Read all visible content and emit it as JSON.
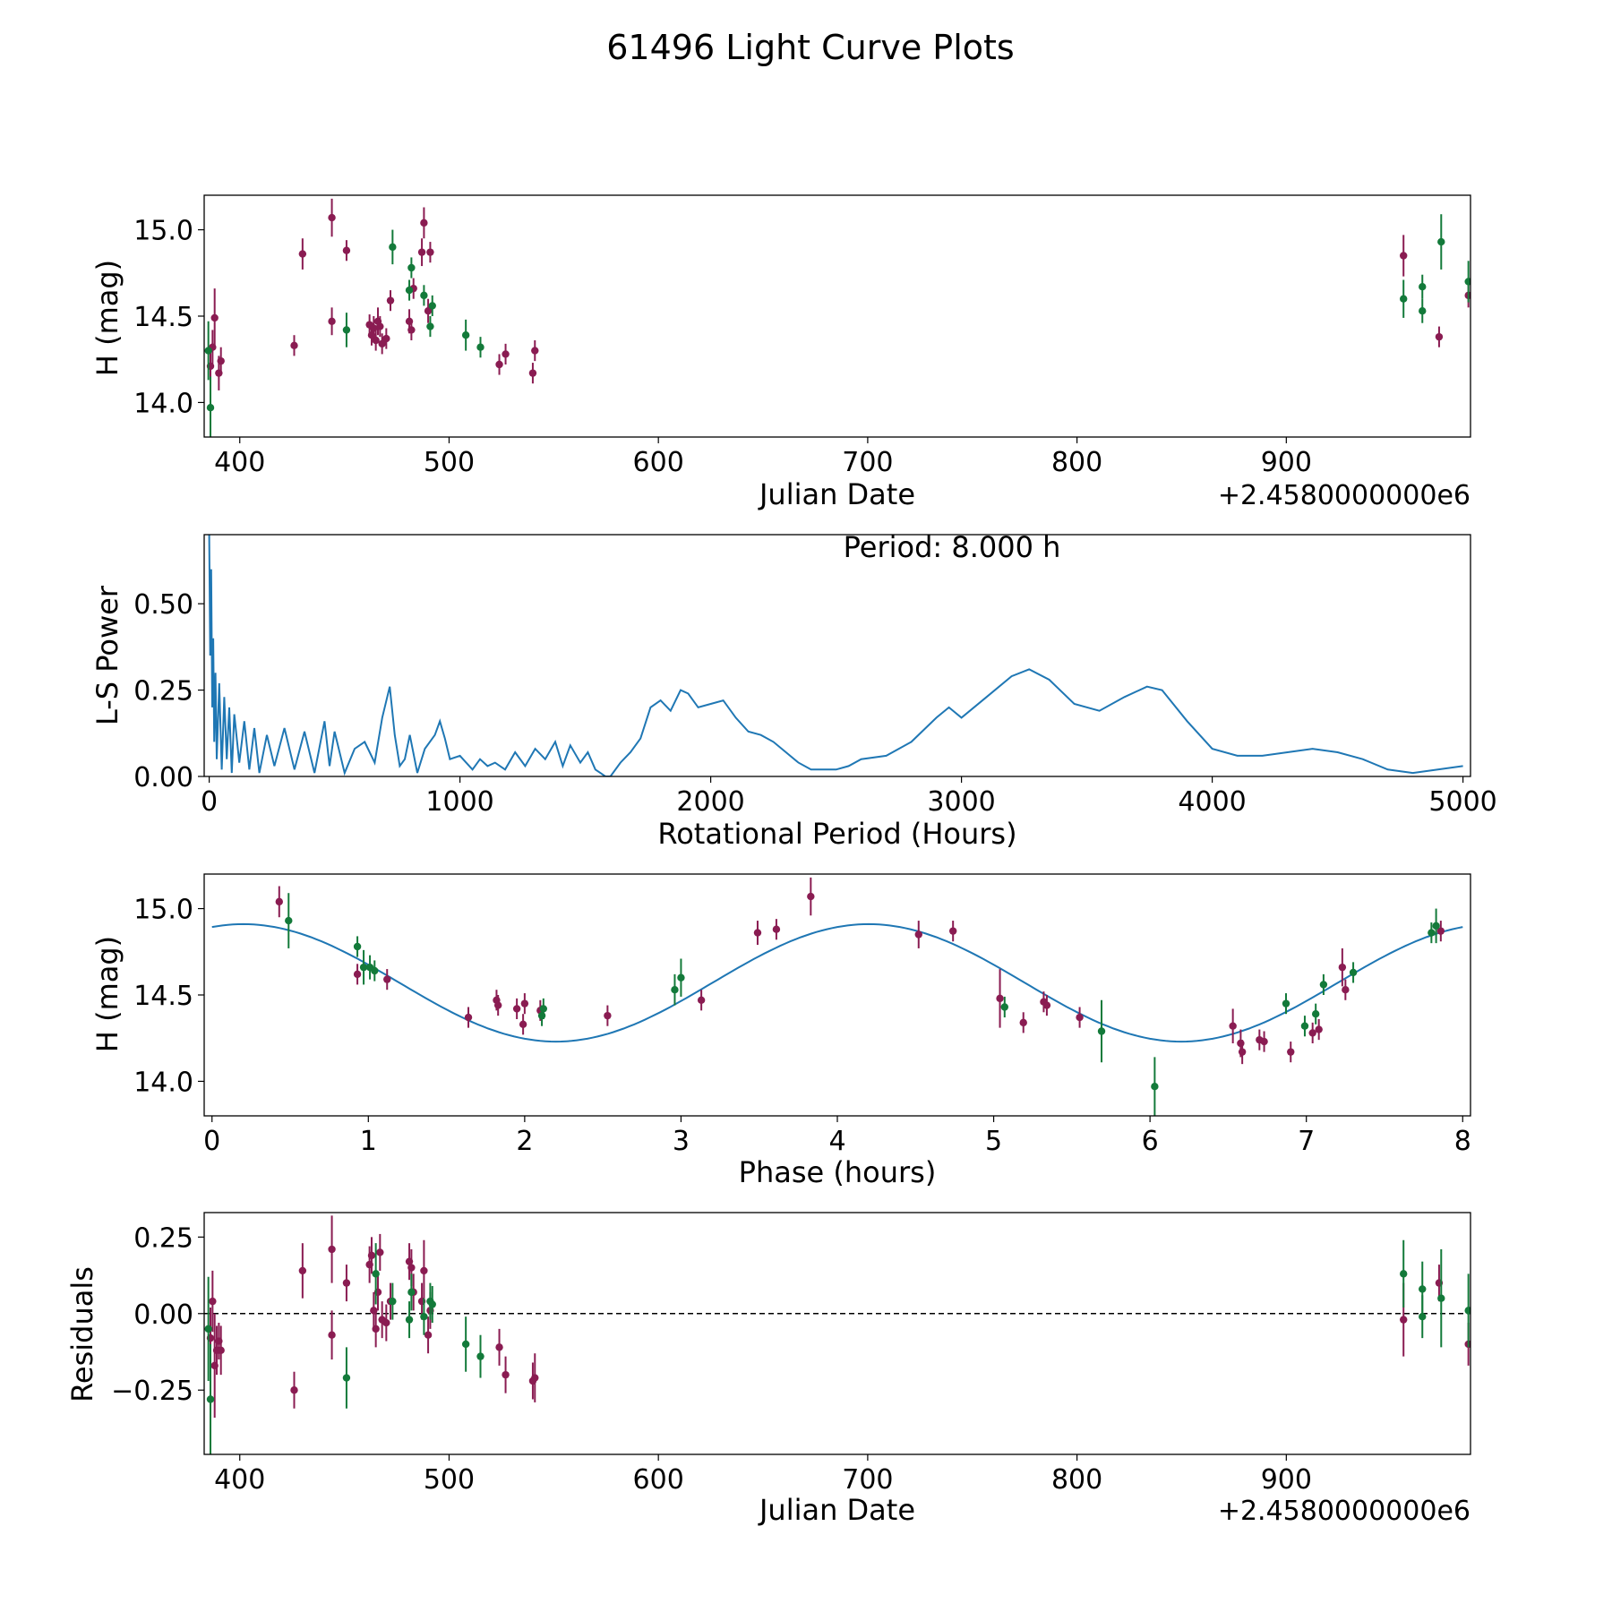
{
  "figure": {
    "title": "61496 Light Curve Plots",
    "colors": {
      "maroon": "#8a1c52",
      "green": "#137a3a",
      "line": "#1f77b4",
      "axis": "#000000"
    }
  },
  "chart_data": [
    {
      "id": "lightcurve",
      "type": "scatter",
      "title": "",
      "xlabel": "Julian Date",
      "ylabel": "H (mag)",
      "offset_text": "+2.4580000000e6",
      "xlim": [
        383,
        988
      ],
      "ylim": [
        13.8,
        15.2
      ],
      "xticks": [
        400,
        500,
        600,
        700,
        800,
        900
      ],
      "xtick_labels": [
        "400",
        "500",
        "600",
        "700",
        "800",
        "900"
      ],
      "yticks": [
        14.0,
        14.5,
        15.0
      ],
      "ytick_labels": [
        "14.0",
        "14.5",
        "15.0"
      ],
      "series": [
        {
          "name": "maroon",
          "color": "#8a1c52",
          "x": [
            386,
            387,
            388,
            390,
            391,
            426,
            430,
            444,
            444,
            451,
            462,
            463,
            464,
            465,
            466,
            467,
            468,
            470,
            472,
            481,
            482,
            483,
            487,
            488,
            490,
            491,
            524,
            527,
            540,
            541,
            956,
            973,
            987
          ],
          "y": [
            14.21,
            14.32,
            14.49,
            14.17,
            14.24,
            14.33,
            14.86,
            14.47,
            15.07,
            14.88,
            14.45,
            14.39,
            14.43,
            14.36,
            14.47,
            14.44,
            14.34,
            14.37,
            14.59,
            14.47,
            14.42,
            14.66,
            14.87,
            15.04,
            14.53,
            14.87,
            14.22,
            14.28,
            14.17,
            14.3,
            14.85,
            14.38,
            14.62
          ],
          "err": [
            0.1,
            0.1,
            0.17,
            0.1,
            0.08,
            0.06,
            0.09,
            0.08,
            0.11,
            0.06,
            0.06,
            0.06,
            0.07,
            0.06,
            0.08,
            0.06,
            0.06,
            0.06,
            0.06,
            0.07,
            0.06,
            0.06,
            0.08,
            0.09,
            0.07,
            0.06,
            0.06,
            0.06,
            0.06,
            0.06,
            0.12,
            0.06,
            0.07
          ]
        },
        {
          "name": "green",
          "color": "#137a3a",
          "x": [
            385,
            386,
            451,
            473,
            481,
            482,
            488,
            491,
            492,
            508,
            515,
            956,
            965,
            965,
            974,
            987
          ],
          "y": [
            14.3,
            13.97,
            14.42,
            14.9,
            14.65,
            14.78,
            14.62,
            14.44,
            14.56,
            14.39,
            14.32,
            14.6,
            14.67,
            14.53,
            14.93,
            14.7
          ],
          "err": [
            0.17,
            0.18,
            0.1,
            0.1,
            0.06,
            0.06,
            0.06,
            0.06,
            0.06,
            0.09,
            0.06,
            0.11,
            0.07,
            0.07,
            0.16,
            0.12
          ]
        }
      ]
    },
    {
      "id": "periodogram",
      "type": "line",
      "title": "",
      "annotation": "Period: 8.000 h",
      "xlabel": "Rotational Period (Hours)",
      "ylabel": "L-S Power",
      "xlim": [
        -20,
        5030
      ],
      "ylim": [
        0,
        0.7
      ],
      "xticks": [
        0,
        1000,
        2000,
        3000,
        4000,
        5000
      ],
      "xtick_labels": [
        "0",
        "1000",
        "2000",
        "3000",
        "4000",
        "5000"
      ],
      "yticks": [
        0.0,
        0.25,
        0.5
      ],
      "ytick_labels": [
        "0.00",
        "0.25",
        "0.50"
      ],
      "series": [
        {
          "name": "power",
          "color": "#1f77b4",
          "x": [
            0,
            4,
            8,
            12,
            16,
            20,
            25,
            30,
            40,
            50,
            60,
            70,
            80,
            90,
            100,
            120,
            140,
            160,
            180,
            200,
            230,
            260,
            300,
            340,
            380,
            420,
            460,
            480,
            500,
            540,
            580,
            620,
            660,
            690,
            720,
            740,
            760,
            780,
            800,
            830,
            860,
            900,
            920,
            940,
            960,
            1000,
            1050,
            1080,
            1110,
            1140,
            1180,
            1220,
            1260,
            1300,
            1340,
            1380,
            1410,
            1440,
            1480,
            1510,
            1540,
            1560,
            1580,
            1600,
            1640,
            1680,
            1720,
            1760,
            1800,
            1840,
            1880,
            1910,
            1950,
            2000,
            2050,
            2100,
            2150,
            2200,
            2250,
            2300,
            2350,
            2400,
            2500,
            2550,
            2600,
            2700,
            2800,
            2900,
            2950,
            3000,
            3100,
            3200,
            3270,
            3350,
            3450,
            3550,
            3650,
            3740,
            3800,
            3900,
            4000,
            4100,
            4200,
            4300,
            4400,
            4500,
            4600,
            4700,
            4800,
            4900,
            5000
          ],
          "y": [
            0.7,
            0.35,
            0.6,
            0.2,
            0.4,
            0.1,
            0.3,
            0.05,
            0.27,
            0.02,
            0.23,
            0.05,
            0.2,
            0.01,
            0.18,
            0.04,
            0.16,
            0.02,
            0.14,
            0.01,
            0.12,
            0.03,
            0.14,
            0.02,
            0.13,
            0.01,
            0.16,
            0.03,
            0.13,
            0.01,
            0.08,
            0.1,
            0.04,
            0.17,
            0.26,
            0.12,
            0.03,
            0.05,
            0.12,
            0.01,
            0.08,
            0.12,
            0.16,
            0.11,
            0.05,
            0.06,
            0.02,
            0.05,
            0.03,
            0.04,
            0.02,
            0.07,
            0.03,
            0.08,
            0.05,
            0.1,
            0.03,
            0.09,
            0.04,
            0.07,
            0.02,
            0.01,
            0.0,
            0.0,
            0.04,
            0.07,
            0.11,
            0.2,
            0.22,
            0.19,
            0.25,
            0.24,
            0.2,
            0.21,
            0.22,
            0.17,
            0.13,
            0.12,
            0.1,
            0.07,
            0.04,
            0.02,
            0.02,
            0.03,
            0.05,
            0.06,
            0.1,
            0.17,
            0.2,
            0.17,
            0.23,
            0.29,
            0.31,
            0.28,
            0.21,
            0.19,
            0.23,
            0.26,
            0.25,
            0.16,
            0.08,
            0.06,
            0.06,
            0.07,
            0.08,
            0.07,
            0.05,
            0.02,
            0.01,
            0.02,
            0.03
          ],
          "err": []
        }
      ]
    },
    {
      "id": "phased",
      "type": "scatter",
      "title": "",
      "xlabel": "Phase (hours)",
      "ylabel": "H (mag)",
      "xlim": [
        -0.05,
        8.05
      ],
      "ylim": [
        13.8,
        15.2
      ],
      "xticks": [
        0,
        1,
        2,
        3,
        4,
        5,
        6,
        7,
        8
      ],
      "xtick_labels": [
        "0",
        "1",
        "2",
        "3",
        "4",
        "5",
        "6",
        "7",
        "8"
      ],
      "yticks": [
        14.0,
        14.5,
        15.0
      ],
      "ytick_labels": [
        "14.0",
        "14.5",
        "15.0"
      ],
      "fit": {
        "color": "#1f77b4",
        "mean": 14.57,
        "amp": 0.34,
        "period": 4.0,
        "peak_phase": 0.2
      },
      "series": [
        {
          "name": "maroon",
          "color": "#8a1c52",
          "x": [
            0.43,
            0.93,
            1.12,
            1.64,
            1.82,
            1.83,
            1.95,
            1.99,
            2.0,
            2.1,
            2.53,
            3.13,
            3.49,
            3.61,
            3.83,
            4.52,
            4.74,
            5.04,
            5.19,
            5.32,
            5.34,
            5.55,
            6.53,
            6.58,
            6.59,
            6.7,
            6.73,
            6.9,
            7.04,
            7.08,
            7.23,
            7.25,
            7.86
          ],
          "y": [
            15.04,
            14.62,
            14.59,
            14.37,
            14.47,
            14.44,
            14.42,
            14.33,
            14.45,
            14.41,
            14.38,
            14.47,
            14.86,
            14.88,
            15.07,
            14.85,
            14.87,
            14.48,
            14.34,
            14.46,
            14.44,
            14.37,
            14.32,
            14.22,
            14.17,
            14.24,
            14.23,
            14.17,
            14.28,
            14.3,
            14.66,
            14.53,
            14.87
          ],
          "err": [
            0.09,
            0.06,
            0.06,
            0.06,
            0.06,
            0.06,
            0.06,
            0.06,
            0.06,
            0.06,
            0.06,
            0.06,
            0.07,
            0.06,
            0.11,
            0.08,
            0.06,
            0.17,
            0.06,
            0.06,
            0.06,
            0.06,
            0.1,
            0.08,
            0.07,
            0.06,
            0.06,
            0.06,
            0.06,
            0.06,
            0.11,
            0.06,
            0.06
          ]
        },
        {
          "name": "green",
          "color": "#137a3a",
          "x": [
            0.49,
            0.93,
            0.97,
            1.01,
            1.04,
            2.11,
            2.12,
            2.96,
            3.0,
            5.07,
            5.69,
            6.03,
            6.87,
            6.99,
            7.06,
            7.11,
            7.3,
            7.8,
            7.83
          ],
          "y": [
            14.93,
            14.78,
            14.66,
            14.66,
            14.64,
            14.38,
            14.42,
            14.53,
            14.6,
            14.43,
            14.29,
            13.97,
            14.45,
            14.32,
            14.39,
            14.56,
            14.63,
            14.86,
            14.9
          ],
          "err": [
            0.16,
            0.06,
            0.1,
            0.07,
            0.06,
            0.06,
            0.06,
            0.09,
            0.11,
            0.06,
            0.18,
            0.17,
            0.06,
            0.06,
            0.06,
            0.06,
            0.06,
            0.06,
            0.1
          ]
        }
      ]
    },
    {
      "id": "residuals",
      "type": "scatter",
      "title": "",
      "xlabel": "Julian Date",
      "ylabel": "Residuals",
      "offset_text": "+2.4580000000e6",
      "xlim": [
        383,
        988
      ],
      "ylim": [
        -0.46,
        0.33
      ],
      "xticks": [
        400,
        500,
        600,
        700,
        800,
        900
      ],
      "xtick_labels": [
        "400",
        "500",
        "600",
        "700",
        "800",
        "900"
      ],
      "yticks": [
        -0.25,
        0.0,
        0.25
      ],
      "ytick_labels": [
        "−0.25",
        "0.00",
        "0.25"
      ],
      "reference_line": {
        "y": 0.0,
        "style": "dashed",
        "color": "#000000"
      },
      "series": [
        {
          "name": "maroon",
          "color": "#8a1c52",
          "x": [
            386,
            387,
            388,
            389,
            390,
            391,
            426,
            430,
            444,
            444,
            451,
            462,
            463,
            464,
            465,
            466,
            467,
            468,
            470,
            472,
            481,
            482,
            483,
            487,
            488,
            490,
            491,
            524,
            527,
            540,
            541,
            956,
            973,
            987
          ],
          "y": [
            -0.08,
            0.04,
            -0.17,
            -0.12,
            -0.09,
            -0.12,
            -0.25,
            0.14,
            0.21,
            -0.07,
            0.1,
            0.16,
            0.19,
            0.01,
            -0.05,
            0.07,
            0.2,
            -0.02,
            -0.03,
            0.04,
            0.17,
            0.15,
            0.07,
            0.04,
            0.14,
            -0.07,
            0.01,
            -0.11,
            -0.2,
            -0.22,
            -0.21,
            -0.02,
            0.1,
            -0.1
          ],
          "err": [
            0.1,
            0.1,
            0.17,
            0.08,
            0.06,
            0.08,
            0.06,
            0.09,
            0.11,
            0.08,
            0.06,
            0.06,
            0.06,
            0.06,
            0.06,
            0.06,
            0.06,
            0.06,
            0.06,
            0.06,
            0.06,
            0.06,
            0.06,
            0.06,
            0.1,
            0.06,
            0.06,
            0.06,
            0.06,
            0.06,
            0.08,
            0.12,
            0.06,
            0.07
          ]
        },
        {
          "name": "green",
          "color": "#137a3a",
          "x": [
            385,
            386,
            451,
            465,
            473,
            481,
            482,
            488,
            491,
            492,
            508,
            515,
            956,
            965,
            965,
            974,
            987
          ],
          "y": [
            -0.05,
            -0.28,
            -0.21,
            0.13,
            0.04,
            -0.02,
            0.07,
            -0.01,
            0.04,
            0.03,
            -0.1,
            -0.14,
            0.13,
            0.08,
            -0.01,
            0.05,
            0.01
          ],
          "err": [
            0.17,
            0.18,
            0.1,
            0.1,
            0.06,
            0.06,
            0.06,
            0.06,
            0.06,
            0.06,
            0.09,
            0.07,
            0.11,
            0.09,
            0.07,
            0.16,
            0.12
          ]
        }
      ]
    }
  ]
}
